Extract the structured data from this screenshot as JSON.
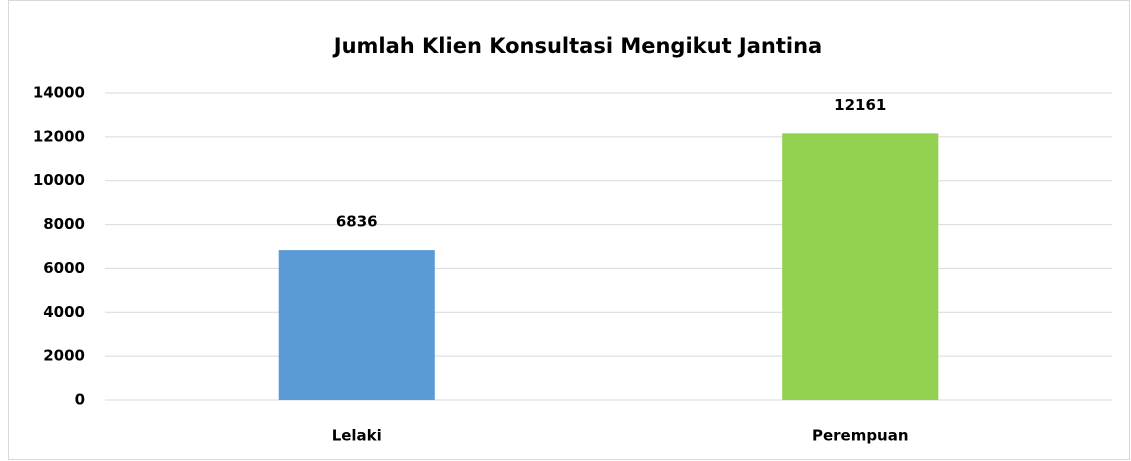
{
  "chart_data": {
    "type": "bar",
    "title": "Jumlah Klien Konsultasi Mengikut Jantina",
    "categories": [
      "Lelaki",
      "Perempuan"
    ],
    "values": [
      6836,
      12161
    ],
    "colors": [
      "#5b9bd5",
      "#92d050"
    ],
    "ylim": [
      0,
      14000
    ],
    "yticks": [
      0,
      2000,
      4000,
      6000,
      8000,
      10000,
      12000,
      14000
    ],
    "grid": true
  }
}
